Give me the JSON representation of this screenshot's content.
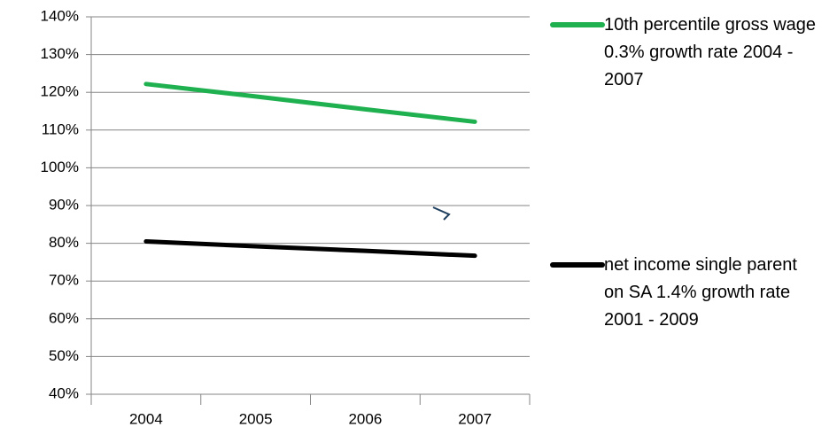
{
  "chart_data": {
    "type": "line",
    "categories": [
      "2004",
      "2005",
      "2006",
      "2007"
    ],
    "series": [
      {
        "name": "10th percentile gross wage 0.3% growth rate 2004 - 2007",
        "color": "#1fb050",
        "values": [
          122.2,
          118.9,
          115.5,
          112.2
        ]
      },
      {
        "name": "net income single parent on SA 1.4% growth rate 2001 - 2009",
        "color": "#000000",
        "values": [
          80.5,
          79.2,
          78.0,
          76.7
        ]
      }
    ],
    "ylim": [
      40,
      140
    ],
    "yticks": [
      {
        "value": 40,
        "label": "40%"
      },
      {
        "value": 50,
        "label": "50%"
      },
      {
        "value": 60,
        "label": "60%"
      },
      {
        "value": 70,
        "label": "70%"
      },
      {
        "value": 80,
        "label": "80%"
      },
      {
        "value": 90,
        "label": "90%"
      },
      {
        "value": 100,
        "label": "100%"
      },
      {
        "value": 110,
        "label": "110%"
      },
      {
        "value": 120,
        "label": "120%"
      },
      {
        "value": 130,
        "label": "130%"
      },
      {
        "value": 140,
        "label": "140%"
      }
    ],
    "grid": true,
    "legend": "right"
  }
}
